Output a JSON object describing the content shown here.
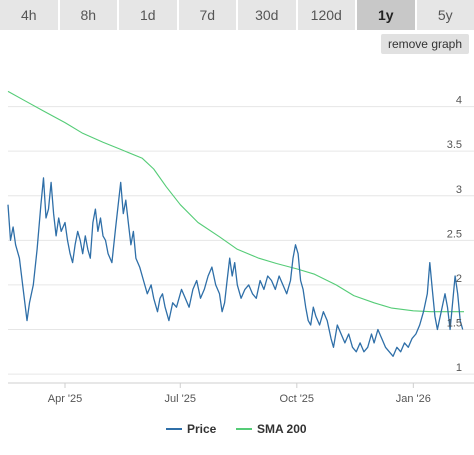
{
  "range_tabs": [
    {
      "label": "4h",
      "active": false
    },
    {
      "label": "8h",
      "active": false
    },
    {
      "label": "1d",
      "active": false
    },
    {
      "label": "7d",
      "active": false
    },
    {
      "label": "30d",
      "active": false
    },
    {
      "label": "120d",
      "active": false
    },
    {
      "label": "1y",
      "active": true
    },
    {
      "label": "5y",
      "active": false
    }
  ],
  "remove_graph_label": "remove graph",
  "colors": {
    "price": "#2f6fa8",
    "sma": "#55cc77",
    "grid": "#e6e6e6",
    "tab_bg": "#e6e6e6",
    "tab_active_bg": "#c8c8c8"
  },
  "chart_data": {
    "type": "line",
    "x_domain": [
      "2025-02-15",
      "2026-02-10"
    ],
    "ylim": [
      0.9,
      4.5
    ],
    "y_ticks": [
      1,
      1.5,
      2,
      2.5,
      3,
      3.5,
      4
    ],
    "y_tick_labels": [
      "1",
      "1.5",
      "2",
      "2.5",
      "3",
      "3.5",
      "4"
    ],
    "x_ticks": [
      "2025-04-01",
      "2025-07-01",
      "2025-10-01",
      "2026-01-01"
    ],
    "x_tick_labels": [
      "Apr '25",
      "Jul '25",
      "Oct '25",
      "Jan '26"
    ],
    "y_axis_side": "right",
    "grid": true,
    "legend_position": "bottom",
    "series": [
      {
        "name": "Price",
        "color": "#2f6fa8",
        "points": [
          [
            "2025-02-15",
            2.9
          ],
          [
            "2025-02-17",
            2.5
          ],
          [
            "2025-02-19",
            2.65
          ],
          [
            "2025-02-21",
            2.45
          ],
          [
            "2025-02-24",
            2.3
          ],
          [
            "2025-02-27",
            1.95
          ],
          [
            "2025-03-02",
            1.6
          ],
          [
            "2025-03-04",
            1.8
          ],
          [
            "2025-03-07",
            2.0
          ],
          [
            "2025-03-10",
            2.4
          ],
          [
            "2025-03-13",
            2.9
          ],
          [
            "2025-03-15",
            3.2
          ],
          [
            "2025-03-17",
            2.75
          ],
          [
            "2025-03-19",
            2.85
          ],
          [
            "2025-03-21",
            3.15
          ],
          [
            "2025-03-23",
            2.8
          ],
          [
            "2025-03-25",
            2.55
          ],
          [
            "2025-03-27",
            2.75
          ],
          [
            "2025-03-29",
            2.6
          ],
          [
            "2025-04-01",
            2.7
          ],
          [
            "2025-04-03",
            2.5
          ],
          [
            "2025-04-05",
            2.35
          ],
          [
            "2025-04-07",
            2.25
          ],
          [
            "2025-04-09",
            2.45
          ],
          [
            "2025-04-11",
            2.6
          ],
          [
            "2025-04-13",
            2.5
          ],
          [
            "2025-04-15",
            2.35
          ],
          [
            "2025-04-17",
            2.55
          ],
          [
            "2025-04-19",
            2.4
          ],
          [
            "2025-04-21",
            2.3
          ],
          [
            "2025-04-23",
            2.7
          ],
          [
            "2025-04-25",
            2.85
          ],
          [
            "2025-04-27",
            2.6
          ],
          [
            "2025-04-29",
            2.75
          ],
          [
            "2025-05-01",
            2.55
          ],
          [
            "2025-05-03",
            2.5
          ],
          [
            "2025-05-05",
            2.35
          ],
          [
            "2025-05-08",
            2.25
          ],
          [
            "2025-05-11",
            2.65
          ],
          [
            "2025-05-13",
            2.9
          ],
          [
            "2025-05-15",
            3.15
          ],
          [
            "2025-05-17",
            2.8
          ],
          [
            "2025-05-19",
            2.95
          ],
          [
            "2025-05-21",
            2.7
          ],
          [
            "2025-05-23",
            2.45
          ],
          [
            "2025-05-25",
            2.6
          ],
          [
            "2025-05-27",
            2.3
          ],
          [
            "2025-05-30",
            2.2
          ],
          [
            "2025-06-02",
            2.05
          ],
          [
            "2025-06-05",
            1.9
          ],
          [
            "2025-06-08",
            2.0
          ],
          [
            "2025-06-10",
            1.85
          ],
          [
            "2025-06-13",
            1.7
          ],
          [
            "2025-06-15",
            1.85
          ],
          [
            "2025-06-17",
            1.9
          ],
          [
            "2025-06-19",
            1.75
          ],
          [
            "2025-06-22",
            1.6
          ],
          [
            "2025-06-25",
            1.8
          ],
          [
            "2025-06-28",
            1.75
          ],
          [
            "2025-07-02",
            1.95
          ],
          [
            "2025-07-05",
            1.85
          ],
          [
            "2025-07-08",
            1.75
          ],
          [
            "2025-07-11",
            1.95
          ],
          [
            "2025-07-14",
            2.05
          ],
          [
            "2025-07-17",
            1.85
          ],
          [
            "2025-07-20",
            1.95
          ],
          [
            "2025-07-23",
            2.1
          ],
          [
            "2025-07-26",
            2.2
          ],
          [
            "2025-07-29",
            2.0
          ],
          [
            "2025-08-01",
            1.9
          ],
          [
            "2025-08-03",
            1.7
          ],
          [
            "2025-08-05",
            1.8
          ],
          [
            "2025-08-07",
            2.05
          ],
          [
            "2025-08-09",
            2.3
          ],
          [
            "2025-08-11",
            2.1
          ],
          [
            "2025-08-13",
            2.25
          ],
          [
            "2025-08-15",
            2.0
          ],
          [
            "2025-08-18",
            1.85
          ],
          [
            "2025-08-21",
            1.95
          ],
          [
            "2025-08-24",
            2.0
          ],
          [
            "2025-08-27",
            1.9
          ],
          [
            "2025-08-30",
            1.85
          ],
          [
            "2025-09-02",
            2.05
          ],
          [
            "2025-09-05",
            1.95
          ],
          [
            "2025-09-08",
            2.1
          ],
          [
            "2025-09-11",
            2.05
          ],
          [
            "2025-09-14",
            1.95
          ],
          [
            "2025-09-17",
            2.1
          ],
          [
            "2025-09-20",
            2.0
          ],
          [
            "2025-09-23",
            1.9
          ],
          [
            "2025-09-26",
            2.05
          ],
          [
            "2025-09-28",
            2.3
          ],
          [
            "2025-09-30",
            2.45
          ],
          [
            "2025-10-02",
            2.35
          ],
          [
            "2025-10-04",
            2.05
          ],
          [
            "2025-10-06",
            1.95
          ],
          [
            "2025-10-08",
            1.75
          ],
          [
            "2025-10-10",
            1.6
          ],
          [
            "2025-10-12",
            1.55
          ],
          [
            "2025-10-14",
            1.75
          ],
          [
            "2025-10-16",
            1.65
          ],
          [
            "2025-10-19",
            1.55
          ],
          [
            "2025-10-22",
            1.7
          ],
          [
            "2025-10-25",
            1.6
          ],
          [
            "2025-10-28",
            1.4
          ],
          [
            "2025-10-30",
            1.3
          ],
          [
            "2025-11-02",
            1.55
          ],
          [
            "2025-11-05",
            1.45
          ],
          [
            "2025-11-08",
            1.35
          ],
          [
            "2025-11-11",
            1.45
          ],
          [
            "2025-11-14",
            1.3
          ],
          [
            "2025-11-17",
            1.25
          ],
          [
            "2025-11-20",
            1.35
          ],
          [
            "2025-11-23",
            1.25
          ],
          [
            "2025-11-26",
            1.3
          ],
          [
            "2025-11-29",
            1.45
          ],
          [
            "2025-12-01",
            1.35
          ],
          [
            "2025-12-04",
            1.5
          ],
          [
            "2025-12-07",
            1.4
          ],
          [
            "2025-12-10",
            1.3
          ],
          [
            "2025-12-13",
            1.25
          ],
          [
            "2025-12-16",
            1.2
          ],
          [
            "2025-12-19",
            1.3
          ],
          [
            "2025-12-22",
            1.25
          ],
          [
            "2025-12-25",
            1.35
          ],
          [
            "2025-12-28",
            1.3
          ],
          [
            "2025-12-31",
            1.4
          ],
          [
            "2026-01-03",
            1.45
          ],
          [
            "2026-01-06",
            1.55
          ],
          [
            "2026-01-09",
            1.7
          ],
          [
            "2026-01-12",
            1.9
          ],
          [
            "2026-01-14",
            2.25
          ],
          [
            "2026-01-16",
            1.95
          ],
          [
            "2026-01-18",
            1.65
          ],
          [
            "2026-01-20",
            1.5
          ],
          [
            "2026-01-23",
            1.7
          ],
          [
            "2026-01-26",
            1.9
          ],
          [
            "2026-01-28",
            1.75
          ],
          [
            "2026-01-30",
            1.5
          ],
          [
            "2026-02-01",
            1.8
          ],
          [
            "2026-02-03",
            2.1
          ],
          [
            "2026-02-05",
            1.9
          ],
          [
            "2026-02-07",
            1.6
          ],
          [
            "2026-02-09",
            1.5
          ]
        ]
      },
      {
        "name": "SMA 200",
        "color": "#55cc77",
        "points": [
          [
            "2025-02-15",
            4.17
          ],
          [
            "2025-03-01",
            4.06
          ],
          [
            "2025-03-15",
            3.95
          ],
          [
            "2025-04-01",
            3.82
          ],
          [
            "2025-04-15",
            3.7
          ],
          [
            "2025-05-01",
            3.6
          ],
          [
            "2025-05-15",
            3.52
          ],
          [
            "2025-06-01",
            3.42
          ],
          [
            "2025-06-10",
            3.3
          ],
          [
            "2025-06-20",
            3.1
          ],
          [
            "2025-07-01",
            2.9
          ],
          [
            "2025-07-15",
            2.7
          ],
          [
            "2025-08-01",
            2.54
          ],
          [
            "2025-08-15",
            2.4
          ],
          [
            "2025-09-01",
            2.3
          ],
          [
            "2025-09-15",
            2.24
          ],
          [
            "2025-10-01",
            2.18
          ],
          [
            "2025-10-15",
            2.12
          ],
          [
            "2025-11-01",
            2.0
          ],
          [
            "2025-11-15",
            1.88
          ],
          [
            "2025-12-01",
            1.8
          ],
          [
            "2025-12-15",
            1.74
          ],
          [
            "2026-01-01",
            1.71
          ],
          [
            "2026-01-15",
            1.7
          ],
          [
            "2026-02-10",
            1.7
          ]
        ]
      }
    ]
  }
}
